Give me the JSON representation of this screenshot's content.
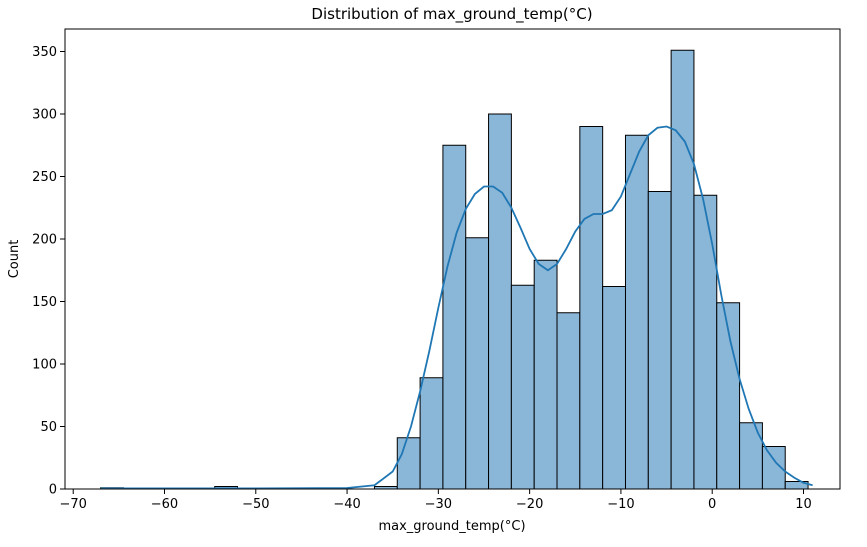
{
  "chart_data": {
    "type": "bar",
    "title": "Distribution of max_ground_temp(°C)",
    "xlabel": "max_ground_temp(°C)",
    "ylabel": "Count",
    "xlim": [
      -70.9,
      14.0
    ],
    "ylim": [
      0,
      368
    ],
    "xticks": [
      -70,
      -60,
      -50,
      -40,
      -30,
      -20,
      -10,
      0,
      10
    ],
    "xtick_labels": [
      "−70",
      "−60",
      "−50",
      "−40",
      "−30",
      "−20",
      "−10",
      "0",
      "10"
    ],
    "yticks": [
      0,
      50,
      100,
      150,
      200,
      250,
      300,
      350
    ],
    "ytick_labels": [
      "0",
      "50",
      "100",
      "150",
      "200",
      "250",
      "300",
      "350"
    ],
    "bins": [
      {
        "x0": -67.0,
        "x1": -64.5,
        "count": 1
      },
      {
        "x0": -64.5,
        "x1": -62.0,
        "count": 0
      },
      {
        "x0": -62.0,
        "x1": -59.5,
        "count": 0
      },
      {
        "x0": -59.5,
        "x1": -57.0,
        "count": 0
      },
      {
        "x0": -57.0,
        "x1": -54.5,
        "count": 0
      },
      {
        "x0": -54.5,
        "x1": -52.0,
        "count": 2
      },
      {
        "x0": -52.0,
        "x1": -49.5,
        "count": 0
      },
      {
        "x0": -49.5,
        "x1": -47.0,
        "count": 0
      },
      {
        "x0": -47.0,
        "x1": -44.5,
        "count": 0
      },
      {
        "x0": -44.5,
        "x1": -42.0,
        "count": 0
      },
      {
        "x0": -42.0,
        "x1": -39.5,
        "count": 0
      },
      {
        "x0": -39.5,
        "x1": -37.0,
        "count": 0
      },
      {
        "x0": -37.0,
        "x1": -34.5,
        "count": 2
      },
      {
        "x0": -34.5,
        "x1": -32.0,
        "count": 41
      },
      {
        "x0": -32.0,
        "x1": -29.5,
        "count": 89
      },
      {
        "x0": -29.5,
        "x1": -27.0,
        "count": 275
      },
      {
        "x0": -27.0,
        "x1": -24.5,
        "count": 201
      },
      {
        "x0": -24.5,
        "x1": -22.0,
        "count": 300
      },
      {
        "x0": -22.0,
        "x1": -19.5,
        "count": 163
      },
      {
        "x0": -19.5,
        "x1": -17.0,
        "count": 183
      },
      {
        "x0": -17.0,
        "x1": -14.5,
        "count": 141
      },
      {
        "x0": -14.5,
        "x1": -12.0,
        "count": 290
      },
      {
        "x0": -12.0,
        "x1": -9.5,
        "count": 162
      },
      {
        "x0": -9.5,
        "x1": -7.0,
        "count": 283
      },
      {
        "x0": -7.0,
        "x1": -4.5,
        "count": 238
      },
      {
        "x0": -4.5,
        "x1": -2.0,
        "count": 351
      },
      {
        "x0": -2.0,
        "x1": 0.5,
        "count": 235
      },
      {
        "x0": 0.5,
        "x1": 3.0,
        "count": 149
      },
      {
        "x0": 3.0,
        "x1": 5.5,
        "count": 53
      },
      {
        "x0": 5.5,
        "x1": 8.0,
        "count": 34
      },
      {
        "x0": 8.0,
        "x1": 10.5,
        "count": 6
      }
    ],
    "kde": {
      "x": [
        -67,
        -60,
        -50,
        -40,
        -37,
        -35,
        -34,
        -33,
        -32,
        -31,
        -30,
        -29,
        -28,
        -27,
        -26,
        -25,
        -24,
        -23,
        -22,
        -21,
        -20,
        -19,
        -18,
        -17,
        -16,
        -15,
        -14,
        -13,
        -12,
        -11,
        -10,
        -9,
        -8,
        -7,
        -6,
        -5,
        -4,
        -3,
        -2,
        -1,
        0,
        1,
        2,
        3,
        4,
        5,
        6,
        7,
        8,
        9,
        10,
        11
      ],
      "y": [
        0.5,
        0.5,
        0.5,
        0.8,
        3,
        14,
        28,
        50,
        78,
        110,
        145,
        178,
        205,
        224,
        236,
        242,
        242,
        237,
        225,
        209,
        192,
        180,
        175,
        180,
        192,
        206,
        216,
        220,
        220,
        223,
        234,
        252,
        270,
        283,
        289,
        290,
        287,
        278,
        260,
        232,
        196,
        155,
        118,
        88,
        64,
        45,
        31,
        21,
        14,
        9,
        5,
        3
      ]
    },
    "grid": false,
    "legend": "none",
    "colors": {
      "bar_fill": "#8ab6d8",
      "bar_edge": "#000000",
      "kde_line": "#1f77b4"
    }
  }
}
